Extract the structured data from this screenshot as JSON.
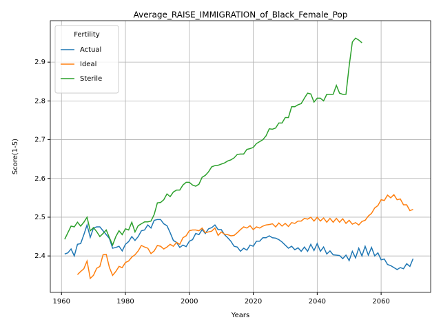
{
  "chart_data": {
    "type": "line",
    "title": "Average_RAISE_IMMIGRATION_of_Black_Female_Pop",
    "x_label": "Years",
    "y_label": "Score(1-5)",
    "legend_title": "Fertility",
    "legend_loc": "upper left",
    "grid": true,
    "x": [
      1961,
      1962,
      1963,
      1964,
      1965,
      1966,
      1967,
      1968,
      1969,
      1970,
      1971,
      1972,
      1973,
      1974,
      1975,
      1976,
      1977,
      1978,
      1979,
      1980,
      1981,
      1982,
      1983,
      1984,
      1985,
      1986,
      1987,
      1988,
      1989,
      1990,
      1991,
      1992,
      1993,
      1994,
      1995,
      1996,
      1997,
      1998,
      1999,
      2000,
      2001,
      2002,
      2003,
      2004,
      2005,
      2006,
      2007,
      2008,
      2009,
      2010,
      2011,
      2012,
      2013,
      2014,
      2015,
      2016,
      2017,
      2018,
      2019,
      2020,
      2021,
      2022,
      2023,
      2024,
      2025,
      2026,
      2027,
      2028,
      2029,
      2030,
      2031,
      2032,
      2033,
      2034,
      2035,
      2036,
      2037,
      2038,
      2039,
      2040,
      2041,
      2042,
      2043,
      2044,
      2045,
      2046,
      2047,
      2048,
      2049,
      2050,
      2051,
      2052,
      2053,
      2054,
      2055,
      2056,
      2057,
      2058,
      2059,
      2060,
      2061,
      2062,
      2063,
      2064,
      2065,
      2066,
      2067,
      2068,
      2069,
      2070
    ],
    "series": [
      {
        "name": "Actual",
        "color": "#1f77b4",
        "values": [
          2.405,
          2.408,
          2.418,
          2.4,
          2.43,
          2.432,
          2.455,
          2.48,
          2.448,
          2.472,
          2.475,
          2.475,
          2.465,
          2.455,
          2.445,
          2.42,
          2.422,
          2.425,
          2.413,
          2.43,
          2.437,
          2.45,
          2.44,
          2.45,
          2.465,
          2.467,
          2.48,
          2.472,
          2.492,
          2.494,
          2.494,
          2.483,
          2.478,
          2.46,
          2.44,
          2.435,
          2.422,
          2.428,
          2.424,
          2.438,
          2.442,
          2.458,
          2.455,
          2.468,
          2.458,
          2.47,
          2.473,
          2.48,
          2.468,
          2.468,
          2.455,
          2.447,
          2.438,
          2.425,
          2.423,
          2.412,
          2.42,
          2.415,
          2.428,
          2.425,
          2.438,
          2.438,
          2.447,
          2.447,
          2.452,
          2.447,
          2.446,
          2.442,
          2.436,
          2.428,
          2.42,
          2.425,
          2.416,
          2.421,
          2.412,
          2.423,
          2.412,
          2.43,
          2.414,
          2.432,
          2.412,
          2.423,
          2.405,
          2.413,
          2.403,
          2.402,
          2.401,
          2.393,
          2.402,
          2.388,
          2.412,
          2.395,
          2.42,
          2.4,
          2.425,
          2.402,
          2.422,
          2.4,
          2.408,
          2.39,
          2.392,
          2.378,
          2.375,
          2.37,
          2.365,
          2.37,
          2.367,
          2.38,
          2.373,
          2.393
        ]
      },
      {
        "name": "Ideal",
        "color": "#ff7f0e",
        "values": [
          null,
          null,
          null,
          null,
          2.352,
          2.36,
          2.367,
          2.387,
          2.342,
          2.35,
          2.368,
          2.373,
          2.403,
          2.404,
          2.37,
          2.35,
          2.36,
          2.373,
          2.37,
          2.383,
          2.387,
          2.397,
          2.403,
          2.413,
          2.427,
          2.423,
          2.42,
          2.406,
          2.413,
          2.427,
          2.425,
          2.418,
          2.423,
          2.43,
          2.425,
          2.435,
          2.43,
          2.447,
          2.452,
          2.465,
          2.467,
          2.467,
          2.465,
          2.472,
          2.46,
          2.462,
          2.464,
          2.472,
          2.453,
          2.462,
          2.456,
          2.455,
          2.452,
          2.453,
          2.46,
          2.468,
          2.475,
          2.472,
          2.478,
          2.468,
          2.475,
          2.472,
          2.477,
          2.48,
          2.481,
          2.483,
          2.475,
          2.485,
          2.477,
          2.484,
          2.476,
          2.486,
          2.484,
          2.49,
          2.49,
          2.497,
          2.495,
          2.5,
          2.49,
          2.5,
          2.49,
          2.498,
          2.487,
          2.497,
          2.487,
          2.497,
          2.487,
          2.496,
          2.484,
          2.492,
          2.482,
          2.486,
          2.48,
          2.489,
          2.492,
          2.503,
          2.51,
          2.524,
          2.53,
          2.545,
          2.543,
          2.557,
          2.55,
          2.558,
          2.545,
          2.547,
          2.532,
          2.532,
          2.517,
          2.52
        ]
      },
      {
        "name": "Sterile",
        "color": "#2ca02c",
        "values": [
          2.443,
          2.46,
          2.477,
          2.475,
          2.487,
          2.477,
          2.487,
          2.5,
          2.465,
          2.473,
          2.463,
          2.45,
          2.458,
          2.467,
          2.447,
          2.428,
          2.45,
          2.465,
          2.455,
          2.47,
          2.467,
          2.487,
          2.462,
          2.478,
          2.483,
          2.488,
          2.488,
          2.49,
          2.507,
          2.537,
          2.538,
          2.545,
          2.56,
          2.553,
          2.565,
          2.57,
          2.57,
          2.583,
          2.59,
          2.59,
          2.583,
          2.58,
          2.585,
          2.603,
          2.608,
          2.617,
          2.63,
          2.633,
          2.634,
          2.637,
          2.64,
          2.645,
          2.648,
          2.653,
          2.662,
          2.663,
          2.663,
          2.675,
          2.677,
          2.68,
          2.69,
          2.695,
          2.7,
          2.71,
          2.728,
          2.727,
          2.73,
          2.743,
          2.743,
          2.757,
          2.757,
          2.785,
          2.785,
          2.79,
          2.793,
          2.807,
          2.82,
          2.818,
          2.797,
          2.807,
          2.807,
          2.8,
          2.817,
          2.817,
          2.817,
          2.84,
          2.82,
          2.817,
          2.817,
          2.89,
          2.952,
          2.962,
          2.957,
          2.95,
          null,
          null,
          null,
          null,
          null,
          null,
          null,
          null,
          null,
          null,
          null,
          null,
          null,
          null,
          null,
          null
        ]
      }
    ],
    "xlim": [
      1956.5,
      2075.5
    ],
    "xticks": [
      1960,
      1980,
      2000,
      2020,
      2040,
      2060
    ],
    "ylim": [
      2.306,
      3.007
    ],
    "yticks": [
      2.4,
      2.5,
      2.6,
      2.7,
      2.8,
      2.9
    ]
  }
}
